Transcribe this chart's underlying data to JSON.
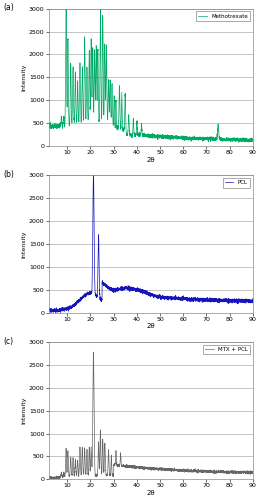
{
  "panels": [
    {
      "label": "(a)",
      "legend": "Methotrexate",
      "color": "#00aa66",
      "ylim": [
        0,
        3000
      ],
      "yticks": [
        0,
        500,
        1000,
        1500,
        2000,
        2500,
        3000
      ],
      "xlim": [
        2,
        90
      ],
      "xticks": [
        10,
        20,
        30,
        40,
        50,
        60,
        70,
        80,
        90
      ]
    },
    {
      "label": "(b)",
      "legend": "PCL",
      "color": "#1515bb",
      "ylim": [
        0,
        3000
      ],
      "yticks": [
        0,
        500,
        1000,
        1500,
        2000,
        2500,
        3000
      ],
      "xlim": [
        2,
        90
      ],
      "xticks": [
        10,
        20,
        30,
        40,
        50,
        60,
        70,
        80,
        90
      ]
    },
    {
      "label": "(c)",
      "legend": "MTX + PCL",
      "color": "#666666",
      "ylim": [
        0,
        3000
      ],
      "yticks": [
        0,
        500,
        1000,
        1500,
        2000,
        2500,
        3000
      ],
      "xlim": [
        2,
        90
      ],
      "xticks": [
        10,
        20,
        30,
        40,
        50,
        60,
        70,
        80,
        90
      ]
    }
  ],
  "xlabel": "2θ",
  "ylabel": "Intensity",
  "background_color": "#ffffff",
  "grid_color": "#999999"
}
